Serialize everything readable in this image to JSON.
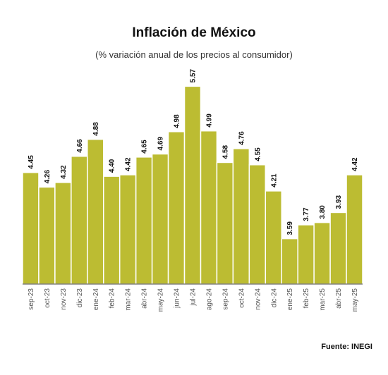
{
  "title": "Inflación de México",
  "subtitle": "(% variación anual de los precios al consumidor)",
  "source": "Fuente: INEGI",
  "colors": {
    "bar": "#bcbc32",
    "bar_stroke": "#ffffff",
    "label": "#111111",
    "tick_label": "#555555",
    "axis_line": "#444444"
  },
  "chart_data": {
    "type": "bar",
    "title": "Inflación de México",
    "subtitle": "(% variación anual de los precios al consumidor)",
    "xlabel": "",
    "ylabel": "",
    "categories": [
      "sep-23",
      "oct-23",
      "nov-23",
      "dic-23",
      "ene-24",
      "feb-24",
      "mar-24",
      "abr-24",
      "may-24",
      "jun-24",
      "jul-24",
      "ago-24",
      "sep-24",
      "oct-24",
      "nov-24",
      "dic-24",
      "ene-25",
      "feb-25",
      "mar-25",
      "abr-25",
      "may-25"
    ],
    "values": [
      4.45,
      4.26,
      4.32,
      4.66,
      4.88,
      4.4,
      4.42,
      4.65,
      4.69,
      4.98,
      5.57,
      4.99,
      4.58,
      4.76,
      4.55,
      4.21,
      3.59,
      3.77,
      3.8,
      3.93,
      4.42
    ],
    "value_labels": [
      "4.45",
      "4.26",
      "4.32",
      "4.66",
      "4.88",
      "4.40",
      "4.42",
      "4.65",
      "4.69",
      "4.98",
      "5.57",
      "4.99",
      "4.58",
      "4.76",
      "4.55",
      "4.21",
      "3.59",
      "3.77",
      "3.80",
      "3.93",
      "4.42"
    ],
    "grid": false,
    "legend": "none"
  }
}
